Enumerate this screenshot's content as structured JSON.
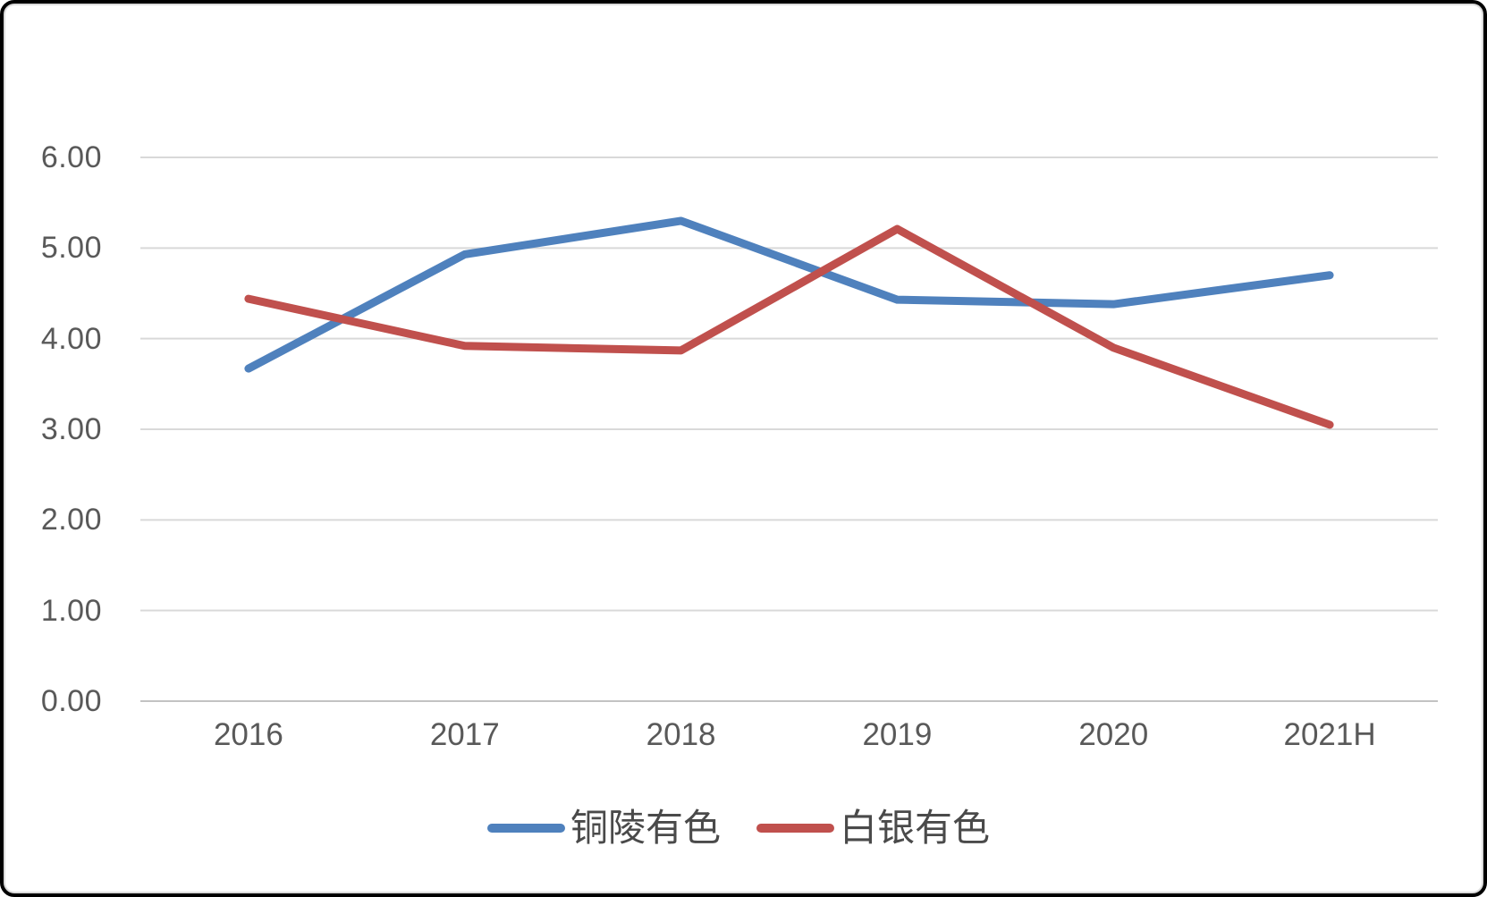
{
  "chart_data": {
    "type": "line",
    "title": "",
    "xlabel": "",
    "ylabel": "",
    "categories": [
      "2016",
      "2017",
      "2018",
      "2019",
      "2020",
      "2021H"
    ],
    "series": [
      {
        "name": "铜陵有色",
        "color": "#4F81BD",
        "values": [
          3.67,
          4.93,
          5.3,
          4.43,
          4.38,
          4.7
        ]
      },
      {
        "name": "白银有色",
        "color": "#C0504D",
        "values": [
          4.44,
          3.92,
          3.87,
          5.21,
          3.9,
          3.05
        ]
      }
    ],
    "y_axis": {
      "min": 0,
      "max": 6,
      "step": 1,
      "tick_labels": [
        "0.00",
        "1.00",
        "2.00",
        "3.00",
        "4.00",
        "5.00",
        "6.00"
      ]
    },
    "grid": true,
    "legend_position": "bottom"
  },
  "legend": {
    "items": [
      {
        "label": "铜陵有色"
      },
      {
        "label": "白银有色"
      }
    ]
  },
  "colors": {
    "series1": "#4F81BD",
    "series2": "#C0504D",
    "gridline": "#D9D9D9",
    "axis_line": "#C3C3C3",
    "tick_text": "#595959",
    "legend_text": "#4A4A4A",
    "border": "#000000",
    "background": "#FFFFFF"
  }
}
